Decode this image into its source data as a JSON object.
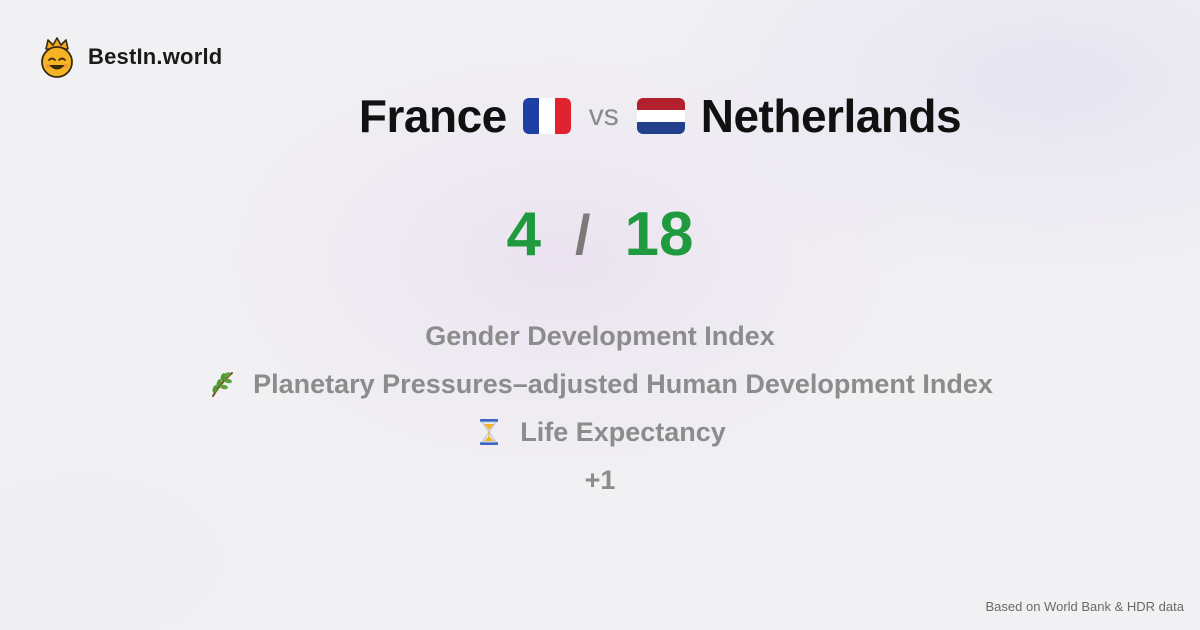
{
  "brand": {
    "name": "BestIn.world",
    "icon": "crowned-smiley-icon"
  },
  "comparison": {
    "left": {
      "name": "France",
      "flag": "flag-france-icon",
      "colors": [
        "#1f3fa6",
        "#ffffff",
        "#e0232f"
      ]
    },
    "vs_label": "vs",
    "right": {
      "name": "Netherlands",
      "flag": "flag-netherlands-icon",
      "colors": [
        "#b21f2d",
        "#ffffff",
        "#22408c"
      ]
    }
  },
  "score": {
    "left": "4",
    "separator": "/",
    "right": "18",
    "color": "#1f9a3e"
  },
  "metrics": [
    {
      "label": "Gender Development Index",
      "icon": null
    },
    {
      "label": "Planetary Pressures–adjusted Human Development Index",
      "icon": "herb-icon"
    },
    {
      "label": "Life Expectancy",
      "icon": "hourglass-icon"
    }
  ],
  "more_label": "+1",
  "footer": {
    "source": "Based on World Bank & HDR data"
  }
}
